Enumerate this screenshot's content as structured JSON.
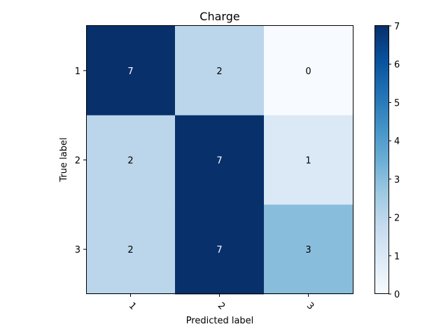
{
  "chart_data": {
    "type": "heatmap",
    "title": "Charge",
    "xlabel": "Predicted label",
    "ylabel": "True label",
    "x_categories": [
      "1",
      "2",
      "3"
    ],
    "y_categories": [
      "1",
      "2",
      "3"
    ],
    "values": [
      [
        7,
        2,
        0
      ],
      [
        2,
        7,
        1
      ],
      [
        2,
        7,
        3
      ]
    ],
    "colormap": "Blues",
    "colorbar": {
      "min": 0,
      "max": 7,
      "ticks": [
        "0",
        "1",
        "2",
        "3",
        "4",
        "5",
        "6",
        "7"
      ]
    },
    "x_tick_rotation_deg": 45,
    "grid": false
  }
}
